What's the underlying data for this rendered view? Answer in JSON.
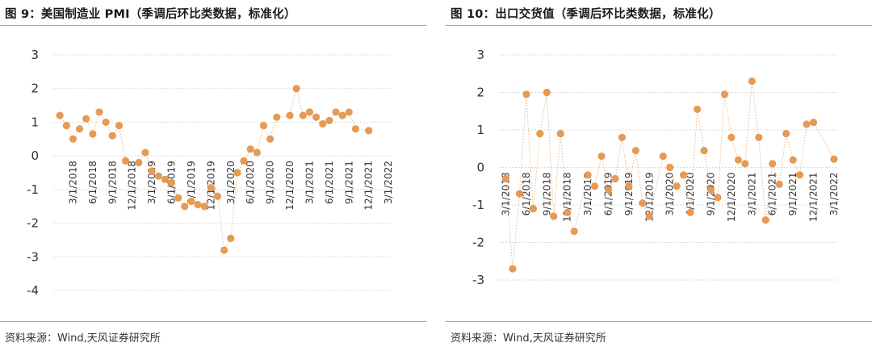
{
  "colors": {
    "accent": "#d9953f",
    "marker": "#e59a55",
    "grid": "#d9d9d9",
    "axis_text": "#333333"
  },
  "source_left": "资料来源：Wind,天风证券研究所",
  "source_right": "资料来源：Wind,天风证券研究所",
  "chart_data": [
    {
      "type": "scatter",
      "title": "图 9：美国制造业 PMI（季调后环比类数据，标准化）",
      "xlabel": "",
      "ylabel": "",
      "ylim": [
        -4,
        3
      ],
      "y_ticks": [
        "3",
        "2",
        "1",
        "0",
        "-1",
        "-2",
        "-3",
        "-4"
      ],
      "x_ticks": [
        "3/1/2018",
        "6/1/2018",
        "9/1/2018",
        "12/1/2018",
        "3/1/2019",
        "6/1/2019",
        "9/1/2019",
        "12/1/2019",
        "3/1/2020",
        "6/1/2020",
        "9/1/2020",
        "12/1/2020",
        "3/1/2021",
        "6/1/2021",
        "9/1/2021",
        "12/1/2021",
        "3/1/2022"
      ],
      "grid": true,
      "connector": "dotted",
      "series": [
        {
          "x": [
            "2018-01",
            "2018-02",
            "2018-03",
            "2018-04",
            "2018-05",
            "2018-06",
            "2018-07",
            "2018-08",
            "2018-09",
            "2018-10",
            "2018-11",
            "2018-12",
            "2019-01",
            "2019-02",
            "2019-03",
            "2019-04",
            "2019-05",
            "2019-06",
            "2019-07",
            "2019-08",
            "2019-09",
            "2019-10",
            "2019-11",
            "2019-12",
            "2020-01",
            "2020-02",
            "2020-03",
            "2020-04",
            "2020-05",
            "2020-06",
            "2020-07",
            "2020-08",
            "2020-09",
            "2020-10",
            "2020-11",
            "2020-12",
            "2021-01",
            "2021-02",
            "2021-03",
            "2021-04",
            "2021-05",
            "2021-06",
            "2021-07",
            "2021-08",
            "2021-09",
            "2021-10",
            "2021-11",
            "2021-12",
            "2022-01",
            "2022-02",
            "2022-03"
          ],
          "values": [
            1.2,
            0.9,
            0.5,
            0.8,
            1.1,
            0.65,
            1.3,
            1.0,
            0.6,
            0.9,
            -0.15,
            null,
            -0.2,
            0.1,
            -0.45,
            -0.6,
            -0.7,
            -0.8,
            -1.25,
            -1.5,
            -1.35,
            -1.45,
            -1.5,
            -0.95,
            -1.2,
            -2.8,
            -2.45,
            -0.5,
            -0.15,
            0.2,
            0.1,
            0.9,
            0.5,
            1.15,
            null,
            1.2,
            2.0,
            1.2,
            1.3,
            1.15,
            0.95,
            1.05,
            1.3,
            1.2,
            1.3,
            0.8,
            null,
            0.75,
            null,
            null,
            null
          ]
        }
      ]
    },
    {
      "type": "scatter",
      "title": "图 10：出口交货值（季调后环比类数据，标准化）",
      "xlabel": "",
      "ylabel": "",
      "ylim": [
        -3,
        3
      ],
      "y_ticks": [
        "3",
        "2",
        "1",
        "0",
        "-1",
        "-2",
        "-3"
      ],
      "x_ticks": [
        "3/1/2018",
        "6/1/2018",
        "9/1/2018",
        "12/1/2018",
        "3/1/2019",
        "6/1/2019",
        "9/1/2019",
        "12/1/2019",
        "3/1/2020",
        "6/1/2020",
        "9/1/2020",
        "12/1/2020",
        "3/1/2021",
        "6/1/2021",
        "9/1/2021",
        "12/1/2021",
        "3/1/2022"
      ],
      "grid": true,
      "connector": "dotted",
      "series": [
        {
          "x": [
            "2018-03",
            "2018-04",
            "2018-05",
            "2018-06",
            "2018-07",
            "2018-08",
            "2018-09",
            "2018-10",
            "2018-11",
            "2018-12",
            "2019-01",
            "2019-03",
            "2019-04",
            "2019-05",
            "2019-06",
            "2019-07",
            "2019-08",
            "2019-09",
            "2019-10",
            "2019-11",
            "2019-12",
            "2020-02",
            "2020-03",
            "2020-04",
            "2020-05",
            "2020-06",
            "2020-07",
            "2020-08",
            "2020-09",
            "2020-10",
            "2020-11",
            "2020-12",
            "2021-01",
            "2021-02",
            "2021-03",
            "2021-04",
            "2021-05",
            "2021-06",
            "2021-07",
            "2021-08",
            "2021-09",
            "2021-10",
            "2021-11",
            "2021-12",
            "2022-01",
            "2022-03"
          ],
          "values": [
            -0.3,
            -2.7,
            -0.7,
            1.95,
            -1.1,
            0.9,
            2.0,
            -1.3,
            0.9,
            -1.2,
            -1.7,
            -0.2,
            -0.5,
            0.3,
            -0.6,
            -0.3,
            0.8,
            -0.5,
            0.45,
            -0.95,
            -1.3,
            0.3,
            0.0,
            -0.5,
            -0.2,
            -1.2,
            1.55,
            0.45,
            -0.6,
            -0.8,
            1.95,
            0.8,
            0.2,
            0.1,
            2.3,
            0.8,
            -1.4,
            0.1,
            -0.45,
            0.9,
            0.2,
            -0.2,
            1.15,
            1.2,
            null,
            0.22
          ]
        }
      ]
    }
  ]
}
